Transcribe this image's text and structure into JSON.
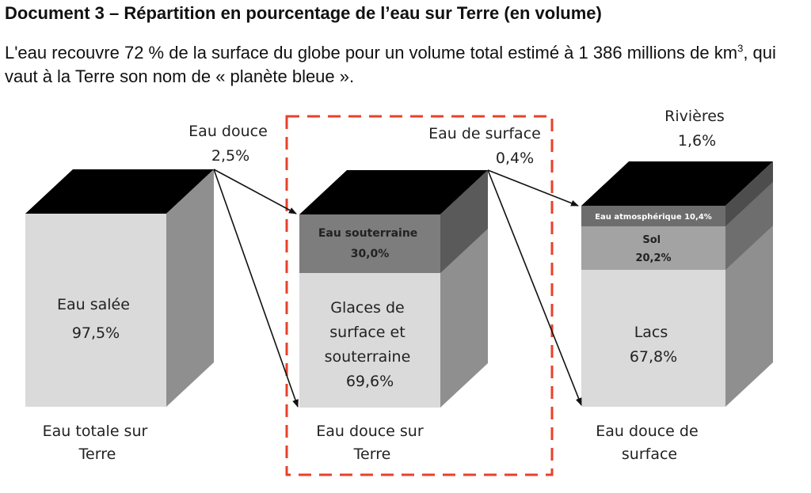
{
  "document": {
    "title": "Document 3 – Répartition en pourcentage de l’eau sur Terre (en volume)",
    "intro_part1": "L'eau recouvre 72 % de la surface du globe pour un volume total estimé à 1 386 millions de km",
    "intro_exponent": "3",
    "intro_part2": ", qui vaut à la Terre son nom de « planète bleue »."
  },
  "cubes": {
    "total": {
      "top_label": [
        "Eau douce",
        "2,5%"
      ],
      "body_label": [
        "Eau salée",
        "97,5%"
      ],
      "caption": [
        "Eau totale sur",
        "Terre"
      ]
    },
    "fresh": {
      "top_label": [
        "Eau de surface",
        "0,4%"
      ],
      "band_label": [
        "Eau souterraine",
        "30,0%"
      ],
      "body_label": [
        "Glaces de",
        "surface et",
        "souterraine",
        "69,6%"
      ],
      "caption": [
        "Eau douce sur",
        "Terre"
      ]
    },
    "surface": {
      "top_label": [
        "Rivières",
        "1,6%"
      ],
      "band1_label": "Eau atmosphérique 10,4%",
      "band2_label": [
        "Sol",
        "20,2%"
      ],
      "body_label": [
        "Lacs",
        "67,8%"
      ],
      "caption": [
        "Eau douce de",
        "surface"
      ]
    }
  },
  "colors": {
    "highlight_border": "#e8402a",
    "cube_top": "#000000",
    "cube_front": "#dadada",
    "cube_side": "#8f8f8f"
  }
}
